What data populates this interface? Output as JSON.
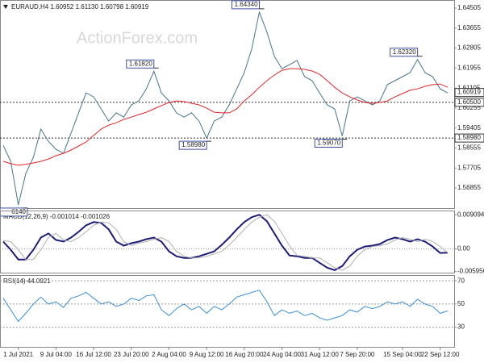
{
  "chart_data": [
    {
      "type": "line",
      "title": "EURAUD,H4 1.60952 1.61130 1.60798 1.60919",
      "watermark": "ActionForex.com",
      "ylim": [
        1.56,
        1.6485
      ],
      "yticks": [
        1.64505,
        1.63655,
        1.62805,
        1.61955,
        1.61105,
        1.60255,
        1.59405,
        1.58555,
        1.57705,
        1.56855
      ],
      "grid": false,
      "last": {
        "value": 1.60919,
        "label": "1.60919"
      },
      "hlines": [
        {
          "value": 1.605,
          "label": "1.60500"
        },
        {
          "value": 1.5898,
          "label": "1.58980"
        }
      ],
      "annotations": [
        {
          "value": 1.5614,
          "label": "6140"
        },
        {
          "value": 1.6182,
          "label": "1.61820"
        },
        {
          "value": 1.5898,
          "label": "1.58980"
        },
        {
          "value": 1.6434,
          "label": "1.64340"
        },
        {
          "value": 1.5907,
          "label": "1.59070"
        },
        {
          "value": 1.6232,
          "label": "1.62320"
        }
      ],
      "series": [
        {
          "color": "#47758a",
          "values": [
            1.5867,
            1.5799,
            1.5614,
            1.5747,
            1.5816,
            1.5936,
            1.5884,
            1.585,
            1.5833,
            1.5919,
            1.6005,
            1.609,
            1.6073,
            1.6022,
            1.597,
            1.6005,
            1.5987,
            1.6039,
            1.6056,
            1.6107,
            1.6182,
            1.609,
            1.6056,
            1.6005,
            1.5987,
            1.6005,
            1.597,
            1.5898,
            1.597,
            1.5987,
            1.6039,
            1.6107,
            1.6176,
            1.6279,
            1.6434,
            1.6348,
            1.6245,
            1.6193,
            1.621,
            1.6228,
            1.6159,
            1.6142,
            1.609,
            1.6039,
            1.6022,
            1.5907,
            1.6056,
            1.6073,
            1.6056,
            1.6039,
            1.6056,
            1.6125,
            1.6142,
            1.6159,
            1.6176,
            1.6232,
            1.6176,
            1.6159,
            1.6107,
            1.609
          ]
        },
        {
          "color": "#e8262b",
          "values": [
            1.5799,
            1.5789,
            1.5782,
            1.5786,
            1.5792,
            1.5799,
            1.5809,
            1.5823,
            1.5833,
            1.5847,
            1.5864,
            1.5881,
            1.5909,
            1.5936,
            1.5953,
            1.5963,
            1.5977,
            1.5987,
            1.5998,
            1.6008,
            1.6022,
            1.6036,
            1.6049,
            1.6056,
            1.6053,
            1.6046,
            1.6039,
            1.6025,
            1.6008,
            1.6005,
            1.6005,
            1.6022,
            1.6056,
            1.6083,
            1.6114,
            1.6142,
            1.6166,
            1.6186,
            1.6193,
            1.6193,
            1.619,
            1.6183,
            1.6169,
            1.6142,
            1.6114,
            1.609,
            1.6073,
            1.606,
            1.6049,
            1.6046,
            1.6049,
            1.6056,
            1.6073,
            1.6087,
            1.6101,
            1.6107,
            1.6118,
            1.6125,
            1.6128,
            1.6114
          ]
        }
      ]
    },
    {
      "type": "line",
      "title": "MACD(12,26,9) -0.001014 -0.001026",
      "ylim": [
        -0.0063,
        0.0102
      ],
      "yticks": [
        0.009094,
        {
          "value": 0,
          "label": "0.00"
        },
        -0.005956
      ],
      "zero_line": true,
      "series": [
        {
          "color": "#1c1c7a",
          "values": [
            0.00195,
            -0.00022,
            -0.00281,
            -0.00281,
            -0.00022,
            0.00303,
            0.00411,
            0.00238,
            0.00195,
            0.00303,
            0.00455,
            0.00628,
            0.00714,
            0.00693,
            0.0052,
            0.00195,
            0.00087,
            0.00152,
            0.00195,
            0.0026,
            0.00303,
            0.00195,
            -0.00065,
            -0.00195,
            -0.00238,
            -0.00238,
            -0.00195,
            -0.0013,
            -0.00065,
            0.00108,
            0.00303,
            0.0052,
            0.00714,
            0.00844,
            0.00909,
            0.00736,
            0.00411,
            0.00087,
            -0.00173,
            -0.00195,
            -0.00238,
            -0.00238,
            -0.00368,
            -0.00498,
            -0.00563,
            -0.00455,
            -0.00195,
            -0.00022,
            0.00065,
            0.00087,
            0.0013,
            0.00238,
            0.00303,
            0.0026,
            0.00195,
            0.0026,
            0.00195,
            0.00065,
            -0.00108,
            -0.00101
          ]
        },
        {
          "color": "#b0b0b0",
          "values": [
            0.0022,
            0.00195,
            -0.00022,
            -0.00281,
            -0.00281,
            -0.00022,
            0.00303,
            0.00411,
            0.00238,
            0.00195,
            0.00303,
            0.00455,
            0.00628,
            0.00714,
            0.00693,
            0.0052,
            0.00195,
            0.00087,
            0.00152,
            0.00195,
            0.0026,
            0.00303,
            0.00195,
            -0.00065,
            -0.00195,
            -0.00238,
            -0.00238,
            -0.00195,
            -0.0013,
            -0.00065,
            0.00108,
            0.00303,
            0.0052,
            0.00714,
            0.00844,
            0.00909,
            0.00736,
            0.00411,
            0.00087,
            -0.00173,
            -0.00195,
            -0.00238,
            -0.00238,
            -0.00368,
            -0.00498,
            -0.00563,
            -0.00455,
            -0.00195,
            -0.00022,
            0.00065,
            0.00087,
            0.0013,
            0.00238,
            0.00303,
            0.0026,
            0.00195,
            0.0026,
            0.00195,
            0.00065,
            -0.00103
          ]
        }
      ]
    },
    {
      "type": "line",
      "title": "RSI(14) 44.0921",
      "ylim": [
        13,
        75
      ],
      "yticks": [
        70,
        50,
        30
      ],
      "grid": true,
      "categories": [
        null,
        null,
        "1 Jul 2021",
        null,
        null,
        null,
        null,
        "9 Jul 04:00",
        null,
        null,
        null,
        null,
        "16 Jul 12:00",
        null,
        null,
        null,
        null,
        "23 Jul 20:00",
        null,
        null,
        null,
        null,
        "2 Aug 04:00",
        null,
        null,
        null,
        null,
        "9 Aug 12:00",
        null,
        null,
        null,
        null,
        "16 Aug 20:00",
        null,
        null,
        null,
        null,
        "24 Aug 04:00",
        null,
        null,
        null,
        null,
        "31 Aug 12:00",
        null,
        null,
        null,
        null,
        "7 Sep 20:00",
        null,
        null,
        null,
        null,
        null,
        "15 Sep 04:00",
        null,
        null,
        null,
        null,
        "22 Sep 12:00",
        null
      ],
      "series": [
        {
          "color": "#3a8fd8",
          "values": [
            55,
            45,
            35,
            42,
            50,
            56,
            50,
            52,
            47,
            55,
            57,
            60,
            55,
            50,
            52,
            48,
            50,
            55,
            53,
            57,
            58,
            45,
            40,
            46,
            50,
            45,
            48,
            42,
            48,
            45,
            50,
            56,
            58,
            60,
            62,
            52,
            40,
            45,
            42,
            44,
            40,
            42,
            38,
            36,
            38,
            40,
            45,
            43,
            48,
            46,
            48,
            52,
            50,
            52,
            48,
            54,
            50,
            48,
            42,
            44.0921
          ]
        }
      ]
    }
  ]
}
